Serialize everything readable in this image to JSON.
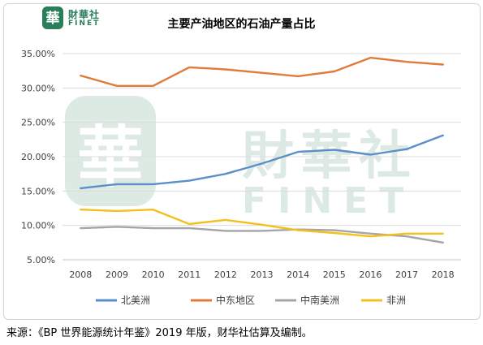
{
  "brand": {
    "seal_glyph": "華",
    "name_cn": "財華社",
    "name_en": "FINET",
    "watermark_cn": "財華社",
    "watermark_en": "FINET",
    "color": "#2a7f5a"
  },
  "chart_data": {
    "type": "line",
    "title": "主要产油地区的石油产量占比",
    "xlabel": "",
    "ylabel": "",
    "categories": [
      "2008",
      "2009",
      "2010",
      "2011",
      "2012",
      "2013",
      "2014",
      "2015",
      "2016",
      "2017",
      "2018"
    ],
    "ylim": [
      5,
      35
    ],
    "y_ticks": [
      "5.00%",
      "10.00%",
      "15.00%",
      "20.00%",
      "25.00%",
      "30.00%",
      "35.00%"
    ],
    "grid": "horizontal",
    "legend_position": "bottom",
    "series": [
      {
        "name": "北美洲",
        "color": "#5b8fc9",
        "values": [
          15.4,
          16.0,
          16.0,
          16.5,
          17.5,
          19.0,
          20.7,
          21.0,
          20.3,
          21.1,
          23.1
        ]
      },
      {
        "name": "中东地区",
        "color": "#e07b39",
        "values": [
          31.8,
          30.3,
          30.3,
          33.0,
          32.7,
          32.2,
          31.7,
          32.4,
          34.4,
          33.8,
          33.4
        ]
      },
      {
        "name": "中南美洲",
        "color": "#a5a5a5",
        "values": [
          9.6,
          9.8,
          9.6,
          9.6,
          9.2,
          9.2,
          9.4,
          9.3,
          8.8,
          8.4,
          7.5
        ]
      },
      {
        "name": "非洲",
        "color": "#f2c01f",
        "values": [
          12.3,
          12.1,
          12.3,
          10.2,
          10.8,
          10.1,
          9.3,
          8.9,
          8.4,
          8.8,
          8.8
        ]
      }
    ]
  },
  "footer": {
    "source": "来源：《BP 世界能源统计年鉴》2019 年版，财华社估算及编制。"
  }
}
